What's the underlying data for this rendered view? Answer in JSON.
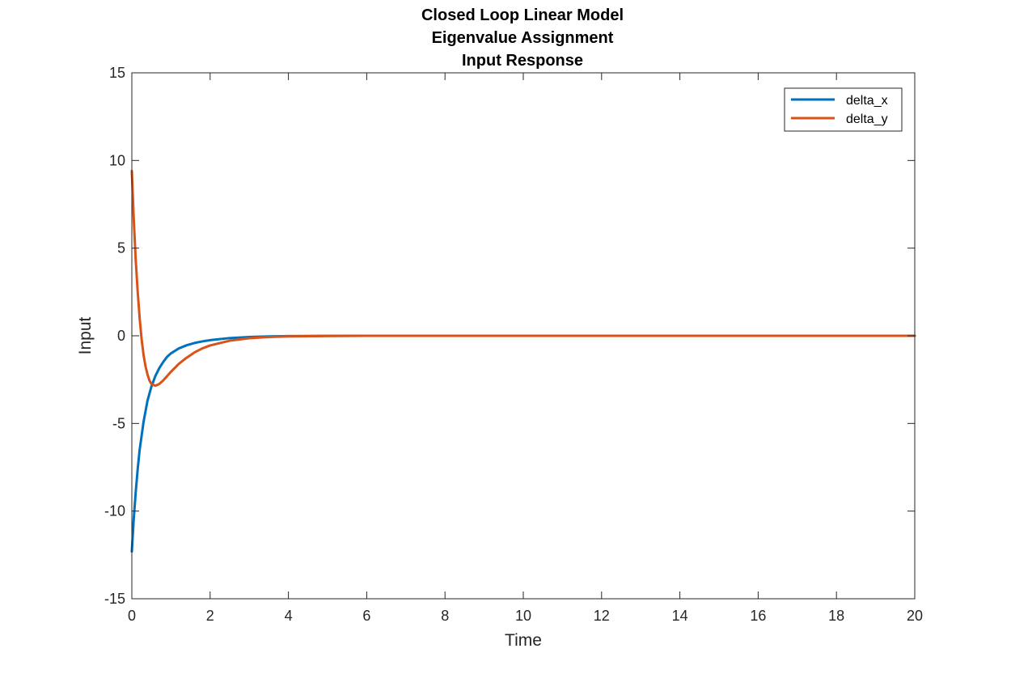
{
  "chart_data": {
    "type": "line",
    "title": [
      "Closed Loop Linear Model",
      "Eigenvalue Assignment",
      "Input Response"
    ],
    "xlabel": "Time",
    "ylabel": "Input",
    "xlim": [
      0,
      20
    ],
    "ylim": [
      -15,
      15
    ],
    "xticks": [
      0,
      2,
      4,
      6,
      8,
      10,
      12,
      14,
      16,
      18,
      20
    ],
    "yticks": [
      -15,
      -10,
      -5,
      0,
      5,
      10,
      15
    ],
    "xtick_labels": [
      "0",
      "2",
      "4",
      "6",
      "8",
      "10",
      "12",
      "14",
      "16",
      "18",
      "20"
    ],
    "ytick_labels": [
      "-15",
      "-10",
      "-5",
      "0",
      "5",
      "10",
      "15"
    ],
    "grid": false,
    "box": true,
    "legend_position": "top-right",
    "series": [
      {
        "name": "delta_x",
        "color": "#0072BD",
        "x": [
          0,
          0.05,
          0.1,
          0.15,
          0.2,
          0.3,
          0.4,
          0.5,
          0.6,
          0.7,
          0.8,
          0.9,
          1.0,
          1.2,
          1.4,
          1.6,
          1.8,
          2.0,
          2.5,
          3.0,
          3.5,
          4.0,
          5.0,
          6.0,
          8.0,
          10.0,
          14.0,
          20.0
        ],
        "y": [
          -12.3,
          -10.4,
          -8.9,
          -7.6,
          -6.5,
          -4.9,
          -3.7,
          -2.9,
          -2.3,
          -1.85,
          -1.5,
          -1.2,
          -1.0,
          -0.72,
          -0.54,
          -0.41,
          -0.32,
          -0.25,
          -0.13,
          -0.07,
          -0.035,
          -0.018,
          -0.005,
          -0.001,
          0,
          0,
          0,
          0
        ]
      },
      {
        "name": "delta_y",
        "color": "#D95319",
        "x": [
          0,
          0.05,
          0.1,
          0.15,
          0.2,
          0.25,
          0.3,
          0.35,
          0.4,
          0.45,
          0.5,
          0.6,
          0.7,
          0.8,
          0.9,
          1.0,
          1.2,
          1.4,
          1.6,
          1.8,
          2.0,
          2.5,
          3.0,
          3.5,
          4.0,
          5.0,
          6.0,
          8.0,
          10.0,
          14.0,
          20.0
        ],
        "y": [
          9.4,
          6.6,
          4.3,
          2.5,
          1.0,
          -0.2,
          -1.1,
          -1.75,
          -2.2,
          -2.55,
          -2.75,
          -2.85,
          -2.75,
          -2.55,
          -2.3,
          -2.05,
          -1.6,
          -1.25,
          -0.95,
          -0.72,
          -0.55,
          -0.28,
          -0.14,
          -0.07,
          -0.035,
          -0.01,
          -0.002,
          0,
          0,
          0,
          0
        ]
      }
    ]
  }
}
